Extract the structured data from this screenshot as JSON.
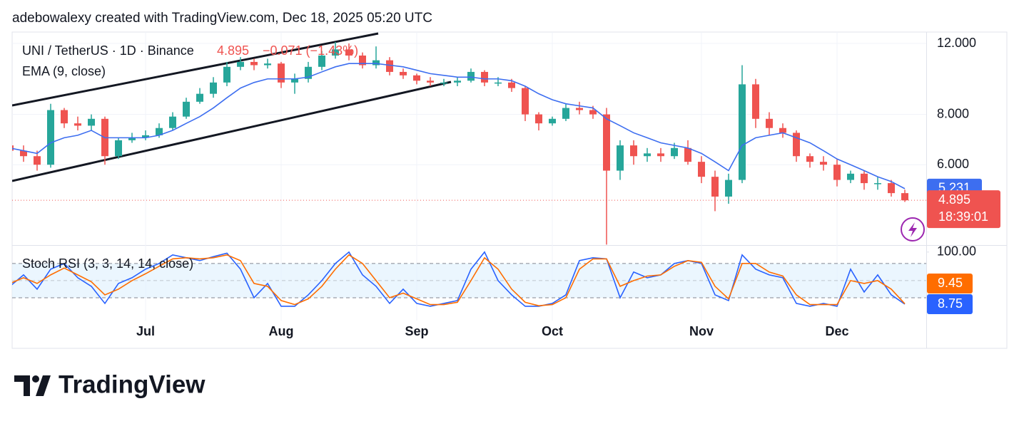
{
  "header": {
    "attribution": "adebowalexy created with TradingView.com, Dec 18, 2025 05:20 UTC"
  },
  "footer": {
    "logo": "TradingView"
  },
  "chart_data": [
    {
      "type": "candlestick",
      "title": "UNI / TetherUS · 1D · Binance",
      "change": "−0.071 (−1.43%)",
      "countdown": "18:39:01",
      "categories": [
        null,
        null,
        null,
        null,
        null,
        null,
        null,
        null,
        null,
        null,
        "Jul",
        null,
        null,
        null,
        null,
        null,
        null,
        null,
        null,
        null,
        "Aug",
        null,
        null,
        null,
        null,
        null,
        null,
        null,
        null,
        null,
        "Sep",
        null,
        null,
        null,
        null,
        null,
        null,
        null,
        null,
        null,
        "Oct",
        null,
        null,
        null,
        null,
        null,
        null,
        null,
        null,
        null,
        null,
        "Nov",
        null,
        null,
        null,
        null,
        null,
        null,
        null,
        null,
        null,
        "Dec",
        null,
        null,
        null,
        null,
        null
      ],
      "open": [
        6.7,
        6.5,
        6.3,
        6.0,
        8.2,
        7.6,
        7.5,
        7.8,
        6.3,
        6.9,
        7.0,
        7.1,
        7.4,
        7.9,
        8.6,
        9.0,
        9.6,
        10.5,
        10.8,
        10.6,
        10.7,
        9.6,
        9.8,
        10.5,
        11.2,
        11.6,
        11.2,
        10.6,
        10.9,
        10.2,
        10.0,
        9.7,
        9.6,
        9.6,
        9.7,
        10.2,
        9.6,
        9.6,
        9.3,
        8.0,
        7.6,
        7.8,
        8.3,
        8.2,
        8.0,
        5.8,
        6.7,
        6.3,
        6.4,
        6.3,
        6.6,
        6.1,
        5.6,
        5.0,
        5.5,
        9.5,
        7.8,
        7.4,
        7.2,
        6.3,
        6.1,
        6.0,
        5.5,
        5.7,
        5.4,
        5.4,
        5.1
      ],
      "high": [
        6.9,
        6.7,
        6.5,
        8.5,
        8.3,
        7.9,
        8.0,
        7.9,
        7.0,
        7.2,
        7.3,
        7.6,
        8.1,
        8.8,
        9.3,
        9.9,
        10.8,
        11.1,
        11.0,
        11.0,
        10.8,
        10.1,
        10.8,
        11.5,
        12.1,
        12.0,
        11.4,
        11.8,
        11.1,
        10.4,
        10.1,
        9.9,
        9.8,
        9.9,
        10.4,
        10.3,
        9.9,
        9.8,
        9.4,
        8.1,
        7.9,
        8.5,
        8.6,
        8.4,
        8.3,
        6.9,
        6.9,
        6.6,
        6.6,
        6.8,
        6.9,
        6.3,
        5.8,
        5.7,
        10.6,
        9.8,
        8.1,
        7.6,
        7.3,
        6.4,
        6.3,
        6.2,
        5.8,
        5.8,
        5.6,
        5.5,
        5.2
      ],
      "low": [
        6.3,
        6.1,
        5.8,
        5.9,
        7.4,
        7.3,
        7.3,
        6.0,
        6.2,
        6.8,
        6.9,
        7.0,
        7.3,
        7.8,
        8.5,
        8.8,
        9.4,
        10.3,
        10.3,
        10.4,
        9.3,
        9.0,
        9.6,
        10.3,
        11.0,
        10.9,
        10.4,
        10.4,
        10.0,
        9.8,
        9.5,
        9.4,
        9.4,
        9.4,
        9.6,
        9.4,
        9.4,
        9.1,
        7.7,
        7.3,
        7.5,
        7.7,
        8.0,
        7.8,
        3.8,
        5.5,
        6.0,
        6.1,
        6.1,
        6.2,
        6.0,
        5.4,
        4.6,
        4.8,
        5.4,
        7.4,
        7.1,
        7.0,
        6.1,
        5.9,
        5.8,
        5.3,
        5.4,
        5.2,
        5.2,
        5.0,
        4.85
      ],
      "close": [
        6.5,
        6.3,
        6.0,
        8.2,
        7.6,
        7.5,
        7.8,
        6.3,
        6.9,
        7.0,
        7.1,
        7.4,
        7.9,
        8.6,
        9.0,
        9.6,
        10.5,
        10.8,
        10.6,
        10.7,
        9.6,
        9.8,
        10.5,
        11.2,
        11.6,
        11.2,
        10.6,
        10.9,
        10.2,
        10.0,
        9.7,
        9.6,
        9.6,
        9.7,
        10.2,
        9.6,
        9.6,
        9.3,
        8.0,
        7.6,
        7.8,
        8.3,
        8.2,
        8.0,
        5.8,
        6.7,
        6.3,
        6.4,
        6.3,
        6.6,
        6.1,
        5.6,
        5.0,
        5.5,
        9.5,
        7.8,
        7.4,
        7.2,
        6.3,
        6.1,
        6.0,
        5.5,
        5.7,
        5.4,
        5.4,
        5.1,
        4.895
      ],
      "up_color": "#26a69a",
      "down_color": "#ef5350",
      "series": [
        {
          "name": "EMA (9, close)",
          "color": "#3d6ef0",
          "values": [
            6.6,
            6.5,
            6.4,
            6.8,
            7.0,
            7.1,
            7.3,
            7.0,
            7.0,
            7.0,
            7.0,
            7.1,
            7.3,
            7.6,
            7.9,
            8.3,
            8.8,
            9.3,
            9.6,
            9.8,
            9.8,
            9.8,
            9.9,
            10.2,
            10.5,
            10.7,
            10.7,
            10.7,
            10.6,
            10.5,
            10.3,
            10.1,
            10.0,
            9.9,
            9.9,
            9.8,
            9.8,
            9.7,
            9.4,
            9.0,
            8.7,
            8.5,
            8.4,
            8.3,
            7.8,
            7.5,
            7.2,
            7.0,
            6.8,
            6.7,
            6.6,
            6.4,
            6.1,
            5.8,
            6.7,
            7.0,
            7.1,
            7.2,
            7.0,
            6.8,
            6.5,
            6.2,
            6.0,
            5.8,
            5.6,
            5.45,
            5.231
          ]
        }
      ],
      "ylim": [
        3.79,
        12.81
      ],
      "log": true,
      "yticks": [
        {
          "value": 12,
          "label": "12.000"
        },
        {
          "value": 8,
          "label": "8.000"
        },
        {
          "value": 6,
          "label": "6.000"
        }
      ],
      "grid": true
    },
    {
      "type": "line",
      "title": "Stoch RSI (3, 3, 14, 14, close)",
      "series": [
        {
          "color": "#2962ff",
          "values": [
            40,
            60,
            35,
            70,
            80,
            55,
            40,
            10,
            45,
            55,
            70,
            80,
            95,
            90,
            85,
            92,
            98,
            70,
            20,
            45,
            5,
            5,
            25,
            50,
            80,
            100,
            60,
            40,
            10,
            35,
            10,
            5,
            10,
            15,
            70,
            100,
            50,
            25,
            5,
            5,
            10,
            25,
            85,
            90,
            88,
            20,
            65,
            55,
            60,
            80,
            85,
            80,
            25,
            15,
            95,
            70,
            60,
            55,
            10,
            5,
            10,
            5,
            70,
            30,
            60,
            25,
            8.75
          ]
        },
        {
          "color": "#ff6d00",
          "values": [
            45,
            55,
            45,
            60,
            72,
            60,
            48,
            25,
            35,
            50,
            62,
            75,
            88,
            90,
            88,
            90,
            95,
            85,
            45,
            40,
            15,
            8,
            18,
            40,
            70,
            95,
            80,
            50,
            20,
            28,
            18,
            8,
            8,
            12,
            50,
            90,
            70,
            35,
            12,
            6,
            8,
            20,
            70,
            88,
            88,
            40,
            50,
            58,
            60,
            75,
            85,
            82,
            40,
            18,
            80,
            80,
            65,
            58,
            25,
            8,
            8,
            8,
            50,
            45,
            50,
            35,
            9.45
          ]
        }
      ],
      "band": [
        20,
        80
      ],
      "levels": [
        80,
        50,
        20
      ],
      "band_color": "#e3f2fd",
      "ylim": [
        -20,
        111
      ],
      "yticks": [
        {
          "value": 100,
          "label": "100.00"
        }
      ]
    }
  ]
}
